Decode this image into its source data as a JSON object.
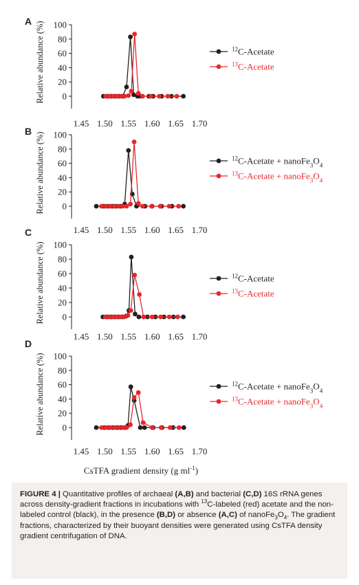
{
  "colors": {
    "c12": "#231f20",
    "c13": "#e8272a",
    "axis": "#231f20"
  },
  "common_xlabel": "CsTFA gradient density (g ml",
  "common_xlabel_sup": "-1",
  "common_xlabel_end": ")",
  "chart_data": [
    {
      "type": "line",
      "panel_label": "A",
      "ylabel": "Relative abundance (%)",
      "xlim": [
        1.45,
        1.7
      ],
      "ylim": [
        0,
        100
      ],
      "xticks": [
        "1.45",
        "1.50",
        "1.55",
        "1.60",
        "1.65",
        "1.70"
      ],
      "yticks": [
        "0",
        "20",
        "40",
        "60",
        "80",
        "100"
      ],
      "series": [
        {
          "legend_pre": "12",
          "legend_post": "C-Acetate",
          "color_key": "c12",
          "x": [
            1.497,
            1.506,
            1.514,
            1.522,
            1.53,
            1.538,
            1.546,
            1.554,
            1.561,
            1.569,
            1.575,
            1.593,
            1.602,
            1.62,
            1.641,
            1.666
          ],
          "y": [
            0,
            0,
            0,
            0,
            0,
            0,
            13,
            83,
            2,
            0,
            0,
            0,
            0,
            0,
            0,
            0
          ]
        },
        {
          "legend_pre": "13",
          "legend_post": "C-Acetate",
          "color_key": "c13",
          "x": [
            1.502,
            1.51,
            1.518,
            1.526,
            1.534,
            1.542,
            1.55,
            1.556,
            1.563,
            1.571,
            1.58,
            1.597,
            1.615,
            1.633,
            1.652
          ],
          "y": [
            0,
            0,
            0,
            0,
            0,
            0,
            1,
            7,
            87,
            4,
            0,
            0,
            0,
            0,
            0
          ]
        }
      ]
    },
    {
      "type": "line",
      "panel_label": "B",
      "ylabel": "Relative abundance (%)",
      "xlim": [
        1.45,
        1.7
      ],
      "ylim": [
        0,
        100
      ],
      "xticks": [
        "1.45",
        "1.50",
        "1.55",
        "1.60",
        "1.65",
        "1.70"
      ],
      "yticks": [
        "0",
        "20",
        "40",
        "60",
        "80",
        "100"
      ],
      "series": [
        {
          "legend_pre": "12",
          "legend_post": "C-Acetate + nanoFe",
          "legend_sub1": "3",
          "legend_mid": "O",
          "legend_sub2": "4",
          "color_key": "c12",
          "x": [
            1.482,
            1.498,
            1.507,
            1.516,
            1.524,
            1.533,
            1.542,
            1.55,
            1.558,
            1.567,
            1.585,
            1.6,
            1.62,
            1.642,
            1.666
          ],
          "y": [
            0,
            0,
            0,
            0,
            0,
            0,
            3,
            78,
            17,
            0,
            0,
            0,
            0,
            0,
            0
          ]
        },
        {
          "legend_pre": "13",
          "legend_post": "C-Acetate + nanoFe",
          "legend_sub1": "3",
          "legend_mid": "O",
          "legend_sub2": "4",
          "color_key": "c13",
          "x": [
            1.493,
            1.502,
            1.511,
            1.52,
            1.529,
            1.538,
            1.546,
            1.554,
            1.562,
            1.571,
            1.58,
            1.599,
            1.617,
            1.636,
            1.656
          ],
          "y": [
            0,
            0,
            0,
            0,
            0,
            0,
            0,
            3,
            90,
            4,
            0,
            0,
            0,
            0,
            0
          ]
        }
      ]
    },
    {
      "type": "line",
      "panel_label": "C",
      "ylabel": "Relative abundance (%)",
      "xlim": [
        1.45,
        1.7
      ],
      "ylim": [
        0,
        100
      ],
      "xticks": [
        "1.45",
        "1.50",
        "1.55",
        "1.60",
        "1.65",
        "1.70"
      ],
      "yticks": [
        "0",
        "20",
        "40",
        "60",
        "80",
        "100"
      ],
      "series": [
        {
          "legend_pre": "12",
          "legend_post": "C-Acetate",
          "color_key": "c12",
          "x": [
            1.496,
            1.505,
            1.513,
            1.521,
            1.529,
            1.537,
            1.545,
            1.551,
            1.556,
            1.564,
            1.572,
            1.59,
            1.607,
            1.625,
            1.645,
            1.666
          ],
          "y": [
            0,
            0,
            0,
            0,
            0,
            0,
            1,
            9,
            83,
            4,
            0,
            0,
            0,
            0,
            0,
            0
          ]
        },
        {
          "legend_pre": "13",
          "legend_post": "C-Acetate",
          "color_key": "c13",
          "x": [
            1.501,
            1.509,
            1.517,
            1.525,
            1.533,
            1.541,
            1.549,
            1.555,
            1.563,
            1.573,
            1.582,
            1.6,
            1.618,
            1.636,
            1.654
          ],
          "y": [
            0,
            0,
            0,
            0,
            0,
            0,
            2,
            9,
            58,
            31,
            0,
            0,
            0,
            0,
            0
          ]
        }
      ]
    },
    {
      "type": "line",
      "panel_label": "D",
      "ylabel": "Relative abundance (%)",
      "xlabel": "CsTFA gradient density (g ml-1)",
      "xlim": [
        1.45,
        1.7
      ],
      "ylim": [
        0,
        100
      ],
      "xticks": [
        "1.45",
        "1.50",
        "1.55",
        "1.60",
        "1.65",
        "1.70"
      ],
      "yticks": [
        "0",
        "20",
        "40",
        "60",
        "80",
        "100"
      ],
      "series": [
        {
          "legend_pre": "12",
          "legend_post": "C-Acetate + nanoFe",
          "legend_sub1": "3",
          "legend_mid": "O",
          "legend_sub2": "4",
          "color_key": "c12",
          "x": [
            1.482,
            1.499,
            1.508,
            1.517,
            1.526,
            1.534,
            1.543,
            1.549,
            1.555,
            1.562,
            1.575,
            1.584,
            1.602,
            1.621,
            1.644,
            1.667
          ],
          "y": [
            0,
            0,
            0,
            0,
            0,
            0,
            0,
            3,
            57,
            38,
            0,
            0,
            0,
            0,
            0,
            0
          ]
        },
        {
          "legend_pre": "13",
          "legend_post": "C-Acetate + nanoFe",
          "legend_sub1": "3",
          "legend_mid": "O",
          "legend_sub2": "4",
          "color_key": "c13",
          "x": [
            1.493,
            1.502,
            1.511,
            1.52,
            1.529,
            1.538,
            1.546,
            1.554,
            1.562,
            1.571,
            1.581,
            1.6,
            1.619,
            1.638,
            1.657
          ],
          "y": [
            0,
            0,
            0,
            0,
            0,
            0,
            0,
            4,
            42,
            49,
            7,
            0,
            0,
            0,
            0
          ]
        }
      ]
    }
  ],
  "caption": {
    "fig_label": "FIGURE 4 |",
    "t1": " Quantitative profiles of archaeal ",
    "b1": "(A,B)",
    "t2": " and bacterial ",
    "b2": "(C,D)",
    "t3": " 16S rRNA genes across density-gradient fractions in incubations with ",
    "sup13": "13",
    "t4": "C-labeled (red) acetate and the non-labeled control (black), in the presence ",
    "b3": "(B,D)",
    "t5": " or absence ",
    "b4": "(A,C)",
    "t6": " of nanoFe",
    "sub3": "3",
    "t7": "O",
    "sub4": "4",
    "t8": ". The gradient fractions, characterized by their buoyant densities were generated using CsTFA density gradient centrifugation of DNA."
  }
}
